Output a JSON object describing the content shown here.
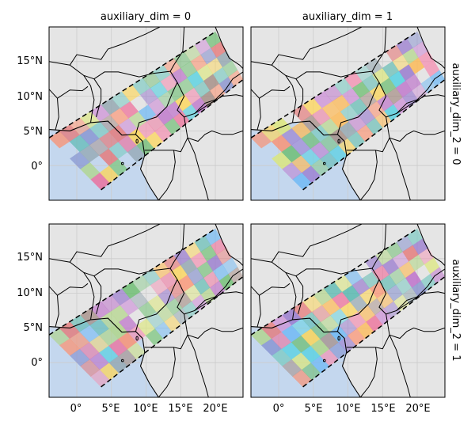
{
  "figure": {
    "col_titles": [
      "auxiliary_dim = 0",
      "auxiliary_dim = 1"
    ],
    "row_titles": [
      "auxiliary_dim_2 = 0",
      "auxiliary_dim_2 = 1"
    ],
    "x_tick_labels": [
      "0°",
      "5°E",
      "10°E",
      "15°E",
      "20°E"
    ],
    "y_tick_labels": [
      "15°N",
      "10°N",
      "5°N",
      "0°"
    ]
  },
  "map_data": {
    "type": "faceted-map",
    "lon_range": [
      -4,
      24
    ],
    "lat_range": [
      -5,
      20
    ],
    "x_ticks": [
      0,
      5,
      10,
      15,
      20
    ],
    "y_ticks": [
      15,
      10,
      5,
      0
    ],
    "grid": true,
    "swath_outline": "dashed",
    "colors": {
      "land": "#e5e5e5",
      "ocean": "#c4d7ee",
      "border": "#000000",
      "gridline": "#cccccc"
    }
  }
}
